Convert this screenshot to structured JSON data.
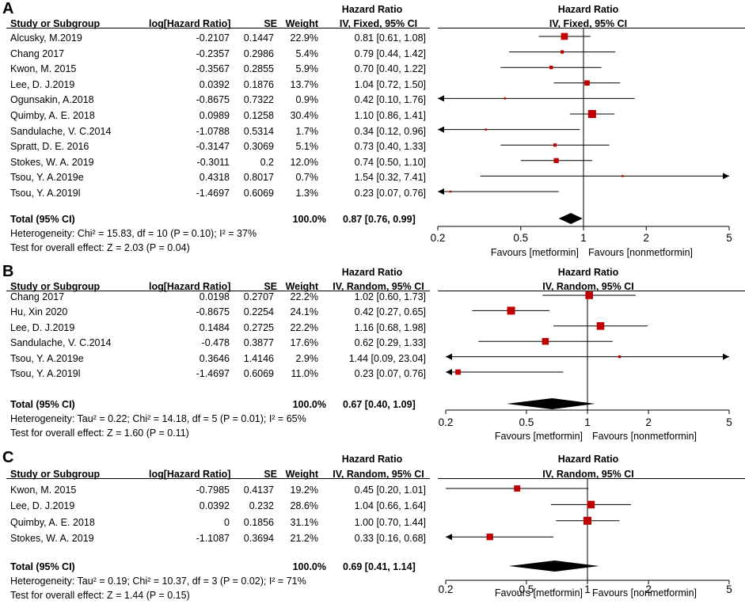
{
  "chart_data": [
    {
      "type": "forest",
      "panel_label": "A",
      "header": {
        "group_title": "Hazard Ratio",
        "study": "Study or Subgroup",
        "loghr": "log[Hazard Ratio]",
        "se": "SE",
        "weight": "Weight",
        "ci_col": "IV, Fixed, 95% CI",
        "plot_title": "Hazard Ratio",
        "plot_sub": "IV, Fixed, 95% CI"
      },
      "studies": [
        {
          "name": "Alcusky, M.2019",
          "loghr": "-0.2107",
          "se": "0.1447",
          "weight": "22.9%",
          "ci_text": "0.81 [0.61, 1.08]",
          "hr": 0.81,
          "lo": 0.61,
          "hi": 1.08
        },
        {
          "name": "Chang 2017",
          "loghr": "-0.2357",
          "se": "0.2986",
          "weight": "5.4%",
          "ci_text": "0.79 [0.44, 1.42]",
          "hr": 0.79,
          "lo": 0.44,
          "hi": 1.42
        },
        {
          "name": "Kwon, M. 2015",
          "loghr": "-0.3567",
          "se": "0.2855",
          "weight": "5.9%",
          "ci_text": "0.70 [0.40, 1.22]",
          "hr": 0.7,
          "lo": 0.4,
          "hi": 1.22
        },
        {
          "name": "Lee, D. J.2019",
          "loghr": "0.0392",
          "se": "0.1876",
          "weight": "13.7%",
          "ci_text": "1.04 [0.72, 1.50]",
          "hr": 1.04,
          "lo": 0.72,
          "hi": 1.5
        },
        {
          "name": "Ogunsakin, A.2018",
          "loghr": "-0.8675",
          "se": "0.7322",
          "weight": "0.9%",
          "ci_text": "0.42 [0.10, 1.76]",
          "hr": 0.42,
          "lo": 0.1,
          "hi": 1.76
        },
        {
          "name": "Quimby, A. E. 2018",
          "loghr": "0.0989",
          "se": "0.1258",
          "weight": "30.4%",
          "ci_text": "1.10 [0.86, 1.41]",
          "hr": 1.1,
          "lo": 0.86,
          "hi": 1.41
        },
        {
          "name": "Sandulache, V. C.2014",
          "loghr": "-1.0788",
          "se": "0.5314",
          "weight": "1.7%",
          "ci_text": "0.34 [0.12, 0.96]",
          "hr": 0.34,
          "lo": 0.12,
          "hi": 0.96
        },
        {
          "name": "Spratt, D. E. 2016",
          "loghr": "-0.3147",
          "se": "0.3069",
          "weight": "5.1%",
          "ci_text": "0.73 [0.40, 1.33]",
          "hr": 0.73,
          "lo": 0.4,
          "hi": 1.33
        },
        {
          "name": "Stokes, W. A. 2019",
          "loghr": "-0.3011",
          "se": "0.2",
          "weight": "12.0%",
          "ci_text": "0.74 [0.50, 1.10]",
          "hr": 0.74,
          "lo": 0.5,
          "hi": 1.1
        },
        {
          "name": "Tsou, Y. A.2019e",
          "loghr": "0.4318",
          "se": "0.8017",
          "weight": "0.7%",
          "ci_text": "1.54 [0.32, 7.41]",
          "hr": 1.54,
          "lo": 0.32,
          "hi": 7.41
        },
        {
          "name": "Tsou, Y. A.2019l",
          "loghr": "-1.4697",
          "se": "0.6069",
          "weight": "1.3%",
          "ci_text": "0.23 [0.07, 0.76]",
          "hr": 0.23,
          "lo": 0.07,
          "hi": 0.76
        }
      ],
      "total": {
        "label": "Total (95% CI)",
        "weight": "100.0%",
        "ci_text": "0.87 [0.76, 0.99]",
        "hr": 0.87,
        "lo": 0.76,
        "hi": 0.99
      },
      "heterogeneity": "Heterogeneity: Chi² = 15.83, df = 10 (P = 0.10); I² = 37%",
      "overall": "Test for overall effect: Z = 2.03 (P = 0.04)",
      "axis": {
        "min": 0.2,
        "max": 5,
        "ticks": [
          0.2,
          0.5,
          1,
          2,
          5
        ],
        "tick_labels": [
          "0.2",
          "0.5",
          "1",
          "2",
          "5"
        ],
        "scale": "log"
      },
      "favours_left": "Favours [metformin]",
      "favours_right": "Favours [nonmetformin]"
    },
    {
      "type": "forest",
      "panel_label": "B",
      "header": {
        "group_title": "Hazard Ratio",
        "study": "Study or Subgroup",
        "loghr": "log[Hazard Ratio]",
        "se": "SE",
        "weight": "Weight",
        "ci_col": "IV, Random, 95% CI",
        "plot_title": "Hazard Ratio",
        "plot_sub": "IV, Random, 95% CI"
      },
      "studies": [
        {
          "name": "Chang 2017",
          "loghr": "0.0198",
          "se": "0.2707",
          "weight": "22.2%",
          "ci_text": "1.02 [0.60, 1.73]",
          "hr": 1.02,
          "lo": 0.6,
          "hi": 1.73
        },
        {
          "name": "Hu, Xin 2020",
          "loghr": "-0.8675",
          "se": "0.2254",
          "weight": "24.1%",
          "ci_text": "0.42 [0.27, 0.65]",
          "hr": 0.42,
          "lo": 0.27,
          "hi": 0.65
        },
        {
          "name": "Lee, D. J.2019",
          "loghr": "0.1484",
          "se": "0.2725",
          "weight": "22.2%",
          "ci_text": "1.16 [0.68, 1.98]",
          "hr": 1.16,
          "lo": 0.68,
          "hi": 1.98
        },
        {
          "name": "Sandulache, V. C.2014",
          "loghr": "-0.478",
          "se": "0.3877",
          "weight": "17.6%",
          "ci_text": "0.62 [0.29, 1.33]",
          "hr": 0.62,
          "lo": 0.29,
          "hi": 1.33
        },
        {
          "name": "Tsou, Y. A.2019e",
          "loghr": "0.3646",
          "se": "1.4146",
          "weight": "2.9%",
          "ci_text": "1.44 [0.09, 23.04]",
          "hr": 1.44,
          "lo": 0.09,
          "hi": 23.04
        },
        {
          "name": "Tsou, Y. A.2019l",
          "loghr": "-1.4697",
          "se": "0.6069",
          "weight": "11.0%",
          "ci_text": "0.23 [0.07, 0.76]",
          "hr": 0.23,
          "lo": 0.07,
          "hi": 0.76
        }
      ],
      "total": {
        "label": "Total (95% CI)",
        "weight": "100.0%",
        "ci_text": "0.67 [0.40, 1.09]",
        "hr": 0.67,
        "lo": 0.4,
        "hi": 1.09
      },
      "heterogeneity": "Heterogeneity: Tau² = 0.22; Chi² = 14.18, df = 5 (P = 0.01); I² = 65%",
      "overall": "Test for overall effect: Z = 1.60 (P = 0.11)",
      "axis": {
        "min": 0.2,
        "max": 5,
        "ticks": [
          0.2,
          0.5,
          1,
          2,
          5
        ],
        "tick_labels": [
          "0.2",
          "0.5",
          "1",
          "2",
          "5"
        ],
        "scale": "log"
      },
      "favours_left": "Favours [metformin]",
      "favours_right": "Favours [nonmetformin]"
    },
    {
      "type": "forest",
      "panel_label": "C",
      "header": {
        "group_title": "Hazard Ratio",
        "study": "Study or Subgroup",
        "loghr": "log[Hazard Ratio]",
        "se": "SE",
        "weight": "Weight",
        "ci_col": "IV, Random, 95% CI",
        "plot_title": "Hazard Ratio",
        "plot_sub": "IV, Random, 95% CI"
      },
      "studies": [
        {
          "name": "Kwon, M. 2015",
          "loghr": "-0.7985",
          "se": "0.4137",
          "weight": "19.2%",
          "ci_text": "0.45 [0.20, 1.01]",
          "hr": 0.45,
          "lo": 0.2,
          "hi": 1.01
        },
        {
          "name": "Lee, D. J.2019",
          "loghr": "0.0392",
          "se": "0.232",
          "weight": "28.6%",
          "ci_text": "1.04 [0.66, 1.64]",
          "hr": 1.04,
          "lo": 0.66,
          "hi": 1.64
        },
        {
          "name": "Quimby, A. E. 2018",
          "loghr": "0",
          "se": "0.1856",
          "weight": "31.1%",
          "ci_text": "1.00 [0.70, 1.44]",
          "hr": 1.0,
          "lo": 0.7,
          "hi": 1.44
        },
        {
          "name": "Stokes, W. A. 2019",
          "loghr": "-1.1087",
          "se": "0.3694",
          "weight": "21.2%",
          "ci_text": "0.33 [0.16, 0.68]",
          "hr": 0.33,
          "lo": 0.16,
          "hi": 0.68
        }
      ],
      "total": {
        "label": "Total (95% CI)",
        "weight": "100.0%",
        "ci_text": "0.69 [0.41, 1.14]",
        "hr": 0.69,
        "lo": 0.41,
        "hi": 1.14
      },
      "heterogeneity": "Heterogeneity: Tau² = 0.19; Chi² = 10.37, df = 3 (P = 0.02); I² = 71%",
      "overall": "Test for overall effect: Z = 1.44 (P = 0.15)",
      "axis": {
        "min": 0.2,
        "max": 5,
        "ticks": [
          0.2,
          0.5,
          1,
          2,
          5
        ],
        "tick_labels": [
          "0.2",
          "0.5",
          "1",
          "2",
          "5"
        ],
        "scale": "log"
      },
      "favours_left": "Favours [metformin]",
      "favours_right": "Favours [nonmetformin]"
    }
  ],
  "colors": {
    "marker": "#c00000",
    "line": "#000000"
  }
}
